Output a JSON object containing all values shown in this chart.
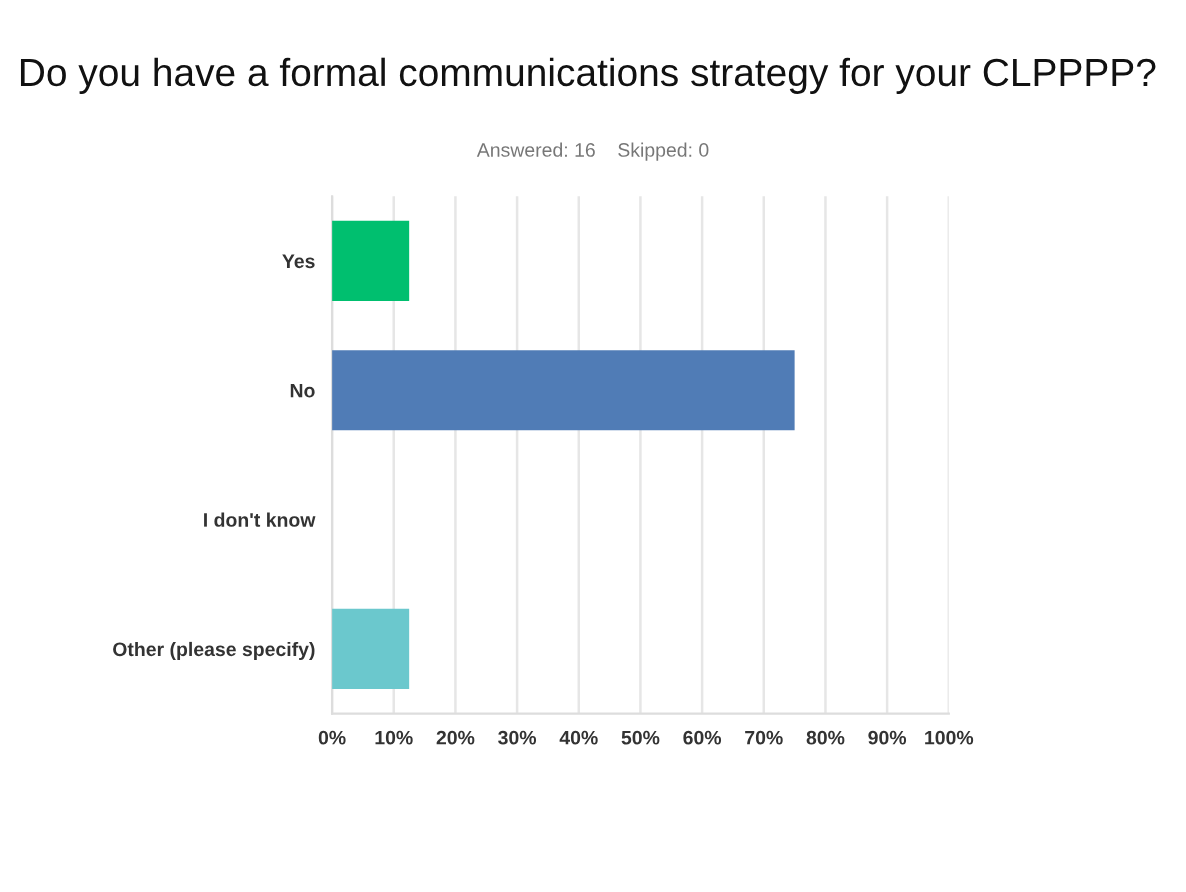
{
  "chart_data": {
    "type": "bar",
    "orientation": "horizontal",
    "title": "Do you have a formal communications strategy for your CLPPPP?",
    "subtitle": "Answered: 16    Skipped: 0",
    "categories": [
      "Yes",
      "No",
      "I don't know",
      "Other (please specify)"
    ],
    "values": [
      12.5,
      75,
      0,
      12.5
    ],
    "colors": [
      "#00bf6f",
      "#507cb6",
      "#f05b24",
      "#6bc8cd"
    ],
    "xlim": [
      0,
      100
    ],
    "xticks": [
      {
        "value": 0,
        "label": "0%"
      },
      {
        "value": 10,
        "label": "10%"
      },
      {
        "value": 20,
        "label": "20%"
      },
      {
        "value": 30,
        "label": "30%"
      },
      {
        "value": 40,
        "label": "40%"
      },
      {
        "value": 50,
        "label": "50%"
      },
      {
        "value": 60,
        "label": "60%"
      },
      {
        "value": 70,
        "label": "70%"
      },
      {
        "value": 80,
        "label": "80%"
      },
      {
        "value": 90,
        "label": "90%"
      },
      {
        "value": 100,
        "label": "100%"
      }
    ],
    "grid": "x"
  }
}
